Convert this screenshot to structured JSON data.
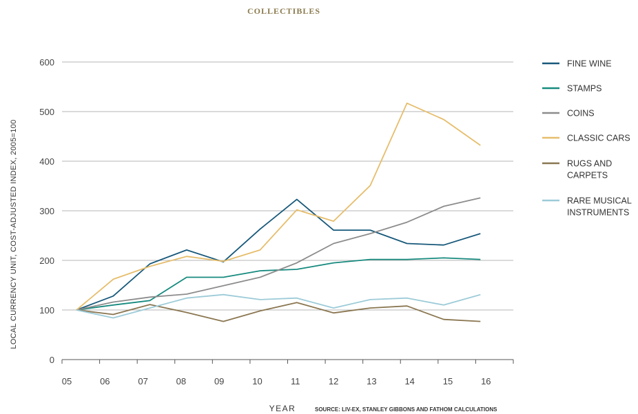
{
  "chart_data": {
    "type": "line",
    "title": "COLLECTIBLES",
    "ylabel": "LOCAL CURRENCY UNIT, COST-ADJUSTED INDEX, 2005=100",
    "xlabel": "YEAR",
    "source": "SOURCE: LIV-EX, STANLEY GIBBONS AND FATHOM CALCULATIONS",
    "ylim": [
      0,
      600
    ],
    "yticks": [
      0,
      100,
      200,
      300,
      400,
      500,
      600
    ],
    "grid": true,
    "legend_position": "right",
    "categories": [
      "05",
      "06",
      "07",
      "08",
      "09",
      "10",
      "11",
      "12",
      "13",
      "14",
      "15",
      "16"
    ],
    "series": [
      {
        "name": "FINE WINE",
        "color": "#17587a",
        "values": [
          100,
          128,
          193,
          221,
          197,
          263,
          323,
          261,
          261,
          234,
          231,
          254
        ]
      },
      {
        "name": "STAMPS",
        "color": "#168a7e",
        "values": [
          100,
          110,
          119,
          166,
          166,
          179,
          182,
          195,
          202,
          202,
          205,
          202
        ]
      },
      {
        "name": "COINS",
        "color": "#8c8c8c",
        "values": [
          100,
          116,
          126,
          132,
          149,
          166,
          195,
          234,
          254,
          277,
          309,
          326
        ]
      },
      {
        "name": "CLASSIC CARS",
        "color": "#e6bd6b",
        "values": [
          100,
          162,
          188,
          208,
          198,
          221,
          302,
          279,
          351,
          517,
          484,
          432
        ]
      },
      {
        "name": "RUGS AND|CARPETS",
        "color": "#8a7650",
        "values": [
          100,
          91,
          111,
          95,
          77,
          98,
          115,
          94,
          104,
          108,
          81,
          77
        ]
      },
      {
        "name": "RARE MUSICAL|INSTRUMENTS",
        "color": "#9ccbd8",
        "values": [
          100,
          84,
          104,
          124,
          131,
          121,
          124,
          104,
          121,
          124,
          110,
          131
        ]
      }
    ]
  }
}
